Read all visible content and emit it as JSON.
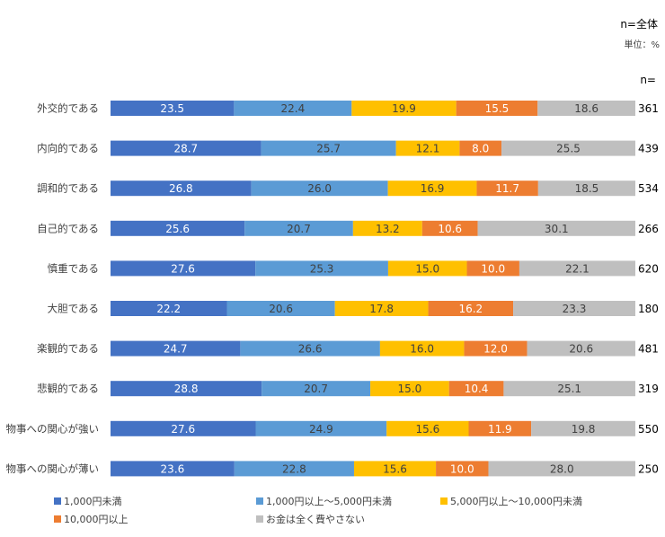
{
  "chart_data": {
    "type": "bar",
    "orientation": "horizontal-stacked-100",
    "title": "",
    "header_note": "n=全体",
    "unit_note": "単位：%",
    "n_header": "n=",
    "xlabel": "",
    "ylabel": "",
    "xlim": [
      0,
      100
    ],
    "grid": false,
    "legend_position": "bottom",
    "categories": [
      "外交的である",
      "内向的である",
      "調和的である",
      "自己的である",
      "慎重である",
      "大胆である",
      "楽観的である",
      "悲観的である",
      "物事への関心が強い",
      "物事への関心が薄い"
    ],
    "n": [
      "361",
      "439",
      "534",
      "266",
      "620",
      "180",
      "481",
      "319",
      "550",
      "250"
    ],
    "series": [
      {
        "name": "1,000円未満",
        "color": "#4472C4",
        "label_color": "#FFFFFF",
        "values": [
          23.5,
          28.7,
          26.8,
          25.6,
          27.6,
          22.2,
          24.7,
          28.8,
          27.6,
          23.6
        ]
      },
      {
        "name": "1,000円以上～5,000円未満",
        "color": "#5B9BD5",
        "label_color": "#404040",
        "values": [
          22.4,
          25.7,
          26.0,
          20.7,
          25.3,
          20.6,
          26.6,
          20.7,
          24.9,
          22.8
        ]
      },
      {
        "name": "5,000円以上～10,000円未満",
        "color": "#FFC000",
        "label_color": "#404040",
        "values": [
          19.9,
          12.1,
          16.9,
          13.2,
          15.0,
          17.8,
          16.0,
          15.0,
          15.6,
          15.6
        ]
      },
      {
        "name": "10,000円以上",
        "color": "#ED7D31",
        "label_color": "#FFFFFF",
        "values": [
          15.5,
          8.0,
          11.7,
          10.6,
          10.0,
          16.2,
          12.0,
          10.4,
          11.9,
          10.0
        ]
      },
      {
        "name": "お金は全く費やさない",
        "color": "#BFBFBF",
        "label_color": "#404040",
        "values": [
          18.6,
          25.5,
          18.5,
          30.1,
          22.1,
          23.3,
          20.6,
          25.1,
          19.8,
          28.0
        ]
      }
    ]
  }
}
